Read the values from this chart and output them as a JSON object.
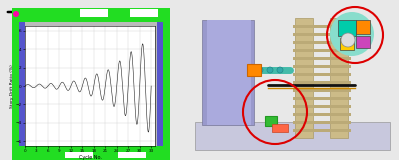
{
  "fig_width": 3.99,
  "fig_height": 1.6,
  "dpi": 100,
  "bg_color": "#e8e8e8",
  "frame_green": "#22dd22",
  "frame_blue_strip": "#5555cc",
  "frame_inner_gray": "#bbbbbb",
  "plot_bg": "#ffffff",
  "graph_line_color": "#222222",
  "axis_label_x": "Cycle No.",
  "axis_label_y": "Story Drift Ratio (%)",
  "x_ticks": [
    0,
    3,
    6,
    9,
    12,
    15,
    18,
    21,
    24,
    27,
    30,
    33
  ],
  "y_ticks": [
    -6,
    -4,
    -2,
    0,
    2,
    4,
    6
  ],
  "y_range": [
    -6.5,
    6.5
  ],
  "x_range": [
    0,
    34
  ],
  "wall_color": "#aaaacc",
  "base_color": "#ccccdd",
  "column_color": "#ccbb88",
  "teal_color": "#44bbaa",
  "orange_color": "#ff8800",
  "green_joint": "#33bb33",
  "red_circle": "#dd0000",
  "magenta_corner": "#ff00aa"
}
